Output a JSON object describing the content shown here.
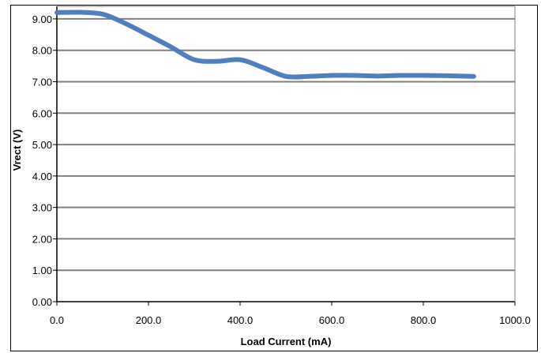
{
  "chart_data": {
    "type": "line",
    "title": "",
    "xlabel": "Load Current (mA)",
    "ylabel": "Vrect (V)",
    "xlim": [
      0,
      1000
    ],
    "ylim": [
      0,
      9.4
    ],
    "x_ticks": [
      0,
      200,
      400,
      600,
      800,
      1000
    ],
    "x_tick_labels": [
      "0.0",
      "200.0",
      "400.0",
      "600.0",
      "800.0",
      "1000.0"
    ],
    "y_ticks": [
      0,
      1,
      2,
      3,
      4,
      5,
      6,
      7,
      8,
      9
    ],
    "y_tick_labels": [
      "0.00",
      "1.00",
      "2.00",
      "3.00",
      "4.00",
      "5.00",
      "6.00",
      "7.00",
      "8.00",
      "9.00"
    ],
    "grid": true,
    "legend": "none",
    "series": [
      {
        "color": "#4f7fbf",
        "x": [
          0,
          50,
          100,
          150,
          200,
          250,
          300,
          350,
          400,
          450,
          500,
          550,
          600,
          650,
          700,
          750,
          800,
          850,
          910
        ],
        "y": [
          9.2,
          9.21,
          9.15,
          8.85,
          8.48,
          8.1,
          7.7,
          7.65,
          7.7,
          7.45,
          7.17,
          7.17,
          7.2,
          7.2,
          7.18,
          7.2,
          7.2,
          7.19,
          7.17
        ]
      }
    ]
  }
}
